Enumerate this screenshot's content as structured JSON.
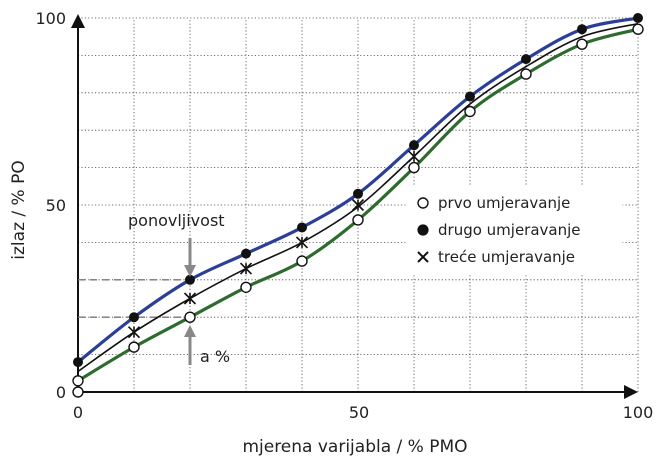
{
  "chart_data": {
    "type": "line",
    "xlabel": "mjerena varijabla / % PMO",
    "ylabel": "izlaz / % PO",
    "xlim": [
      0,
      100
    ],
    "ylim": [
      0,
      100
    ],
    "x_ticks": [
      "0",
      "50",
      "100"
    ],
    "y_ticks": [
      "0",
      "50",
      "100"
    ],
    "grid": true,
    "legend_position": "right",
    "series": [
      {
        "name": "prvo umjeravanje",
        "marker": "open-circle",
        "line_color": "#2e6b2e",
        "points": [
          [
            0,
            0
          ],
          [
            0,
            3
          ],
          [
            10,
            12
          ],
          [
            20,
            20
          ],
          [
            30,
            28
          ],
          [
            40,
            35
          ],
          [
            50,
            46
          ],
          [
            60,
            60
          ],
          [
            70,
            75
          ],
          [
            80,
            85
          ],
          [
            90,
            93
          ],
          [
            100,
            97
          ]
        ]
      },
      {
        "name": "drugo umjeravanje",
        "marker": "filled-circle",
        "line_color": "#2b3f99",
        "points": [
          [
            0,
            8
          ],
          [
            10,
            20
          ],
          [
            20,
            30
          ],
          [
            30,
            37
          ],
          [
            40,
            44
          ],
          [
            50,
            53
          ],
          [
            60,
            66
          ],
          [
            70,
            79
          ],
          [
            80,
            89
          ],
          [
            90,
            97
          ],
          [
            100,
            100
          ]
        ]
      },
      {
        "name": "treće umjeravanje",
        "marker": "x",
        "line_color": "#111111",
        "points": [
          [
            10,
            16
          ],
          [
            20,
            25
          ],
          [
            30,
            33
          ],
          [
            40,
            40
          ],
          [
            50,
            50
          ],
          [
            60,
            63
          ]
        ]
      }
    ],
    "annotations": {
      "ponovljivost": "ponovljivost",
      "a_percent": "a %"
    },
    "dashed_reference_levels": [
      30,
      20
    ]
  }
}
